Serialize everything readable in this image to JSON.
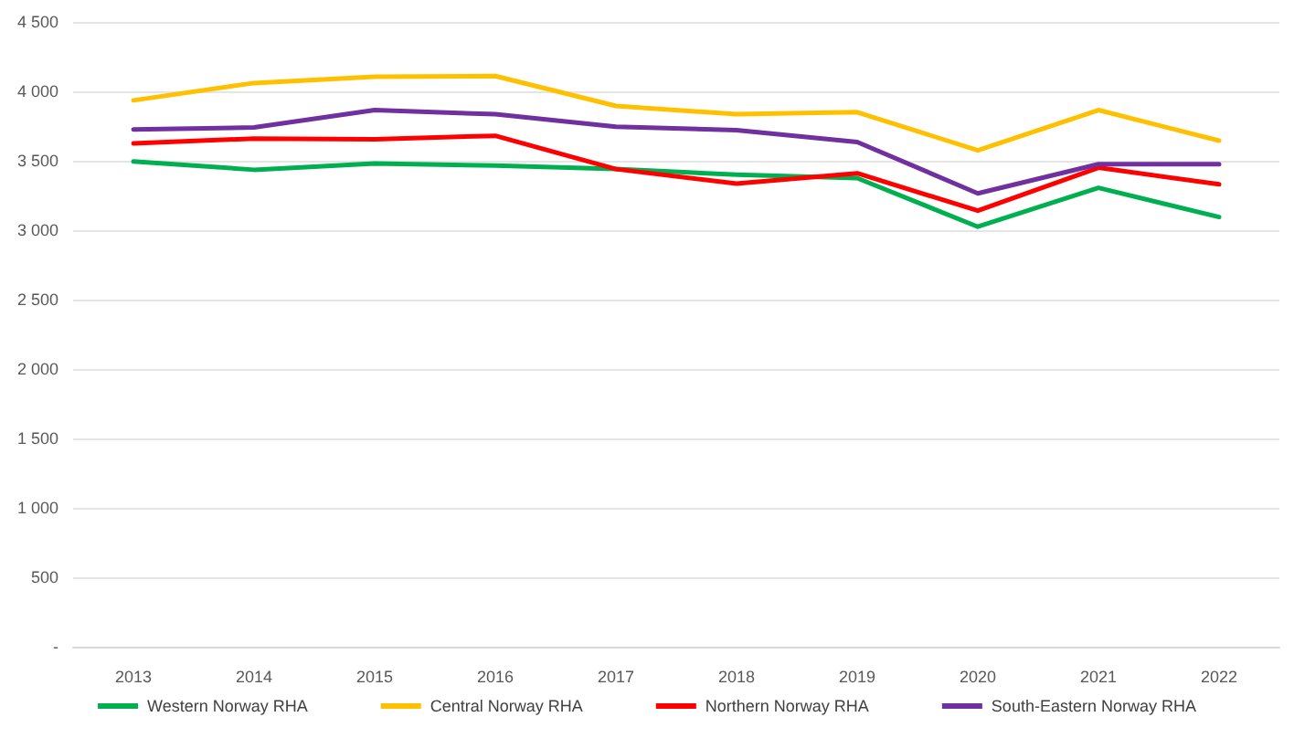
{
  "chart_data": {
    "type": "line",
    "categories": [
      "2013",
      "2014",
      "2015",
      "2016",
      "2017",
      "2018",
      "2019",
      "2020",
      "2021",
      "2022"
    ],
    "series": [
      {
        "name": "Western Norway RHA",
        "color": "#00b050",
        "values": [
          3495,
          3435,
          3480,
          3465,
          3440,
          3400,
          3375,
          3025,
          3305,
          3095
        ]
      },
      {
        "name": "Central Norway RHA",
        "color": "#ffc000",
        "values": [
          3935,
          4060,
          4105,
          4110,
          3895,
          3835,
          3850,
          3575,
          3865,
          3645
        ]
      },
      {
        "name": "Northern Norway RHA",
        "color": "#ff0000",
        "values": [
          3625,
          3660,
          3655,
          3680,
          3440,
          3335,
          3410,
          3140,
          3450,
          3330
        ]
      },
      {
        "name": "South-Eastern Norway RHA",
        "color": "#7030a0",
        "values": [
          3725,
          3740,
          3865,
          3835,
          3745,
          3720,
          3635,
          3265,
          3475,
          3475
        ]
      }
    ],
    "ylim": [
      0,
      4500
    ],
    "yticks": [
      {
        "value": 0,
        "label": "-"
      },
      500,
      {
        "value": 1000,
        "label": "1 000"
      },
      {
        "value": 1500,
        "label": "1 500"
      },
      {
        "value": 2000,
        "label": "2 000"
      },
      {
        "value": 2500,
        "label": "2 500"
      },
      {
        "value": 3000,
        "label": "3 000"
      },
      {
        "value": 3500,
        "label": "3 500"
      },
      {
        "value": 4000,
        "label": "4 000"
      },
      {
        "value": 4500,
        "label": "4 500"
      }
    ],
    "grid": "y",
    "legend": "bottom",
    "marker": "none",
    "line_style": "solid"
  }
}
